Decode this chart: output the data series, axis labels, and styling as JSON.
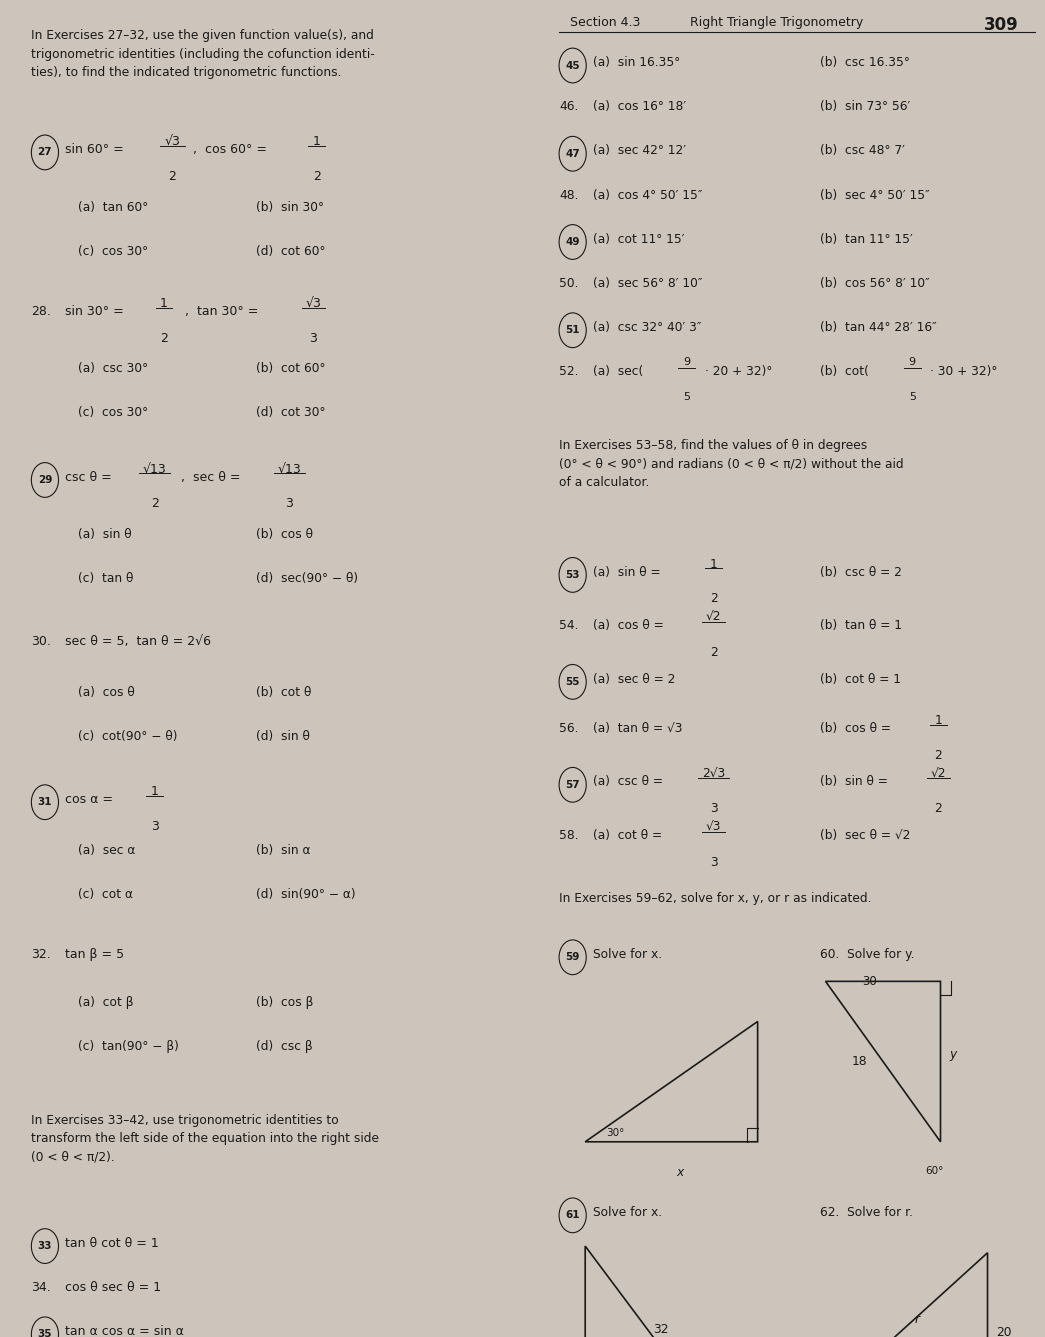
{
  "bg_color": "#cdc5bb",
  "text_color": "#1a1a1a",
  "page_num": "309",
  "section": "Section 4.3",
  "section_title": "Right Triangle Trigonometry"
}
